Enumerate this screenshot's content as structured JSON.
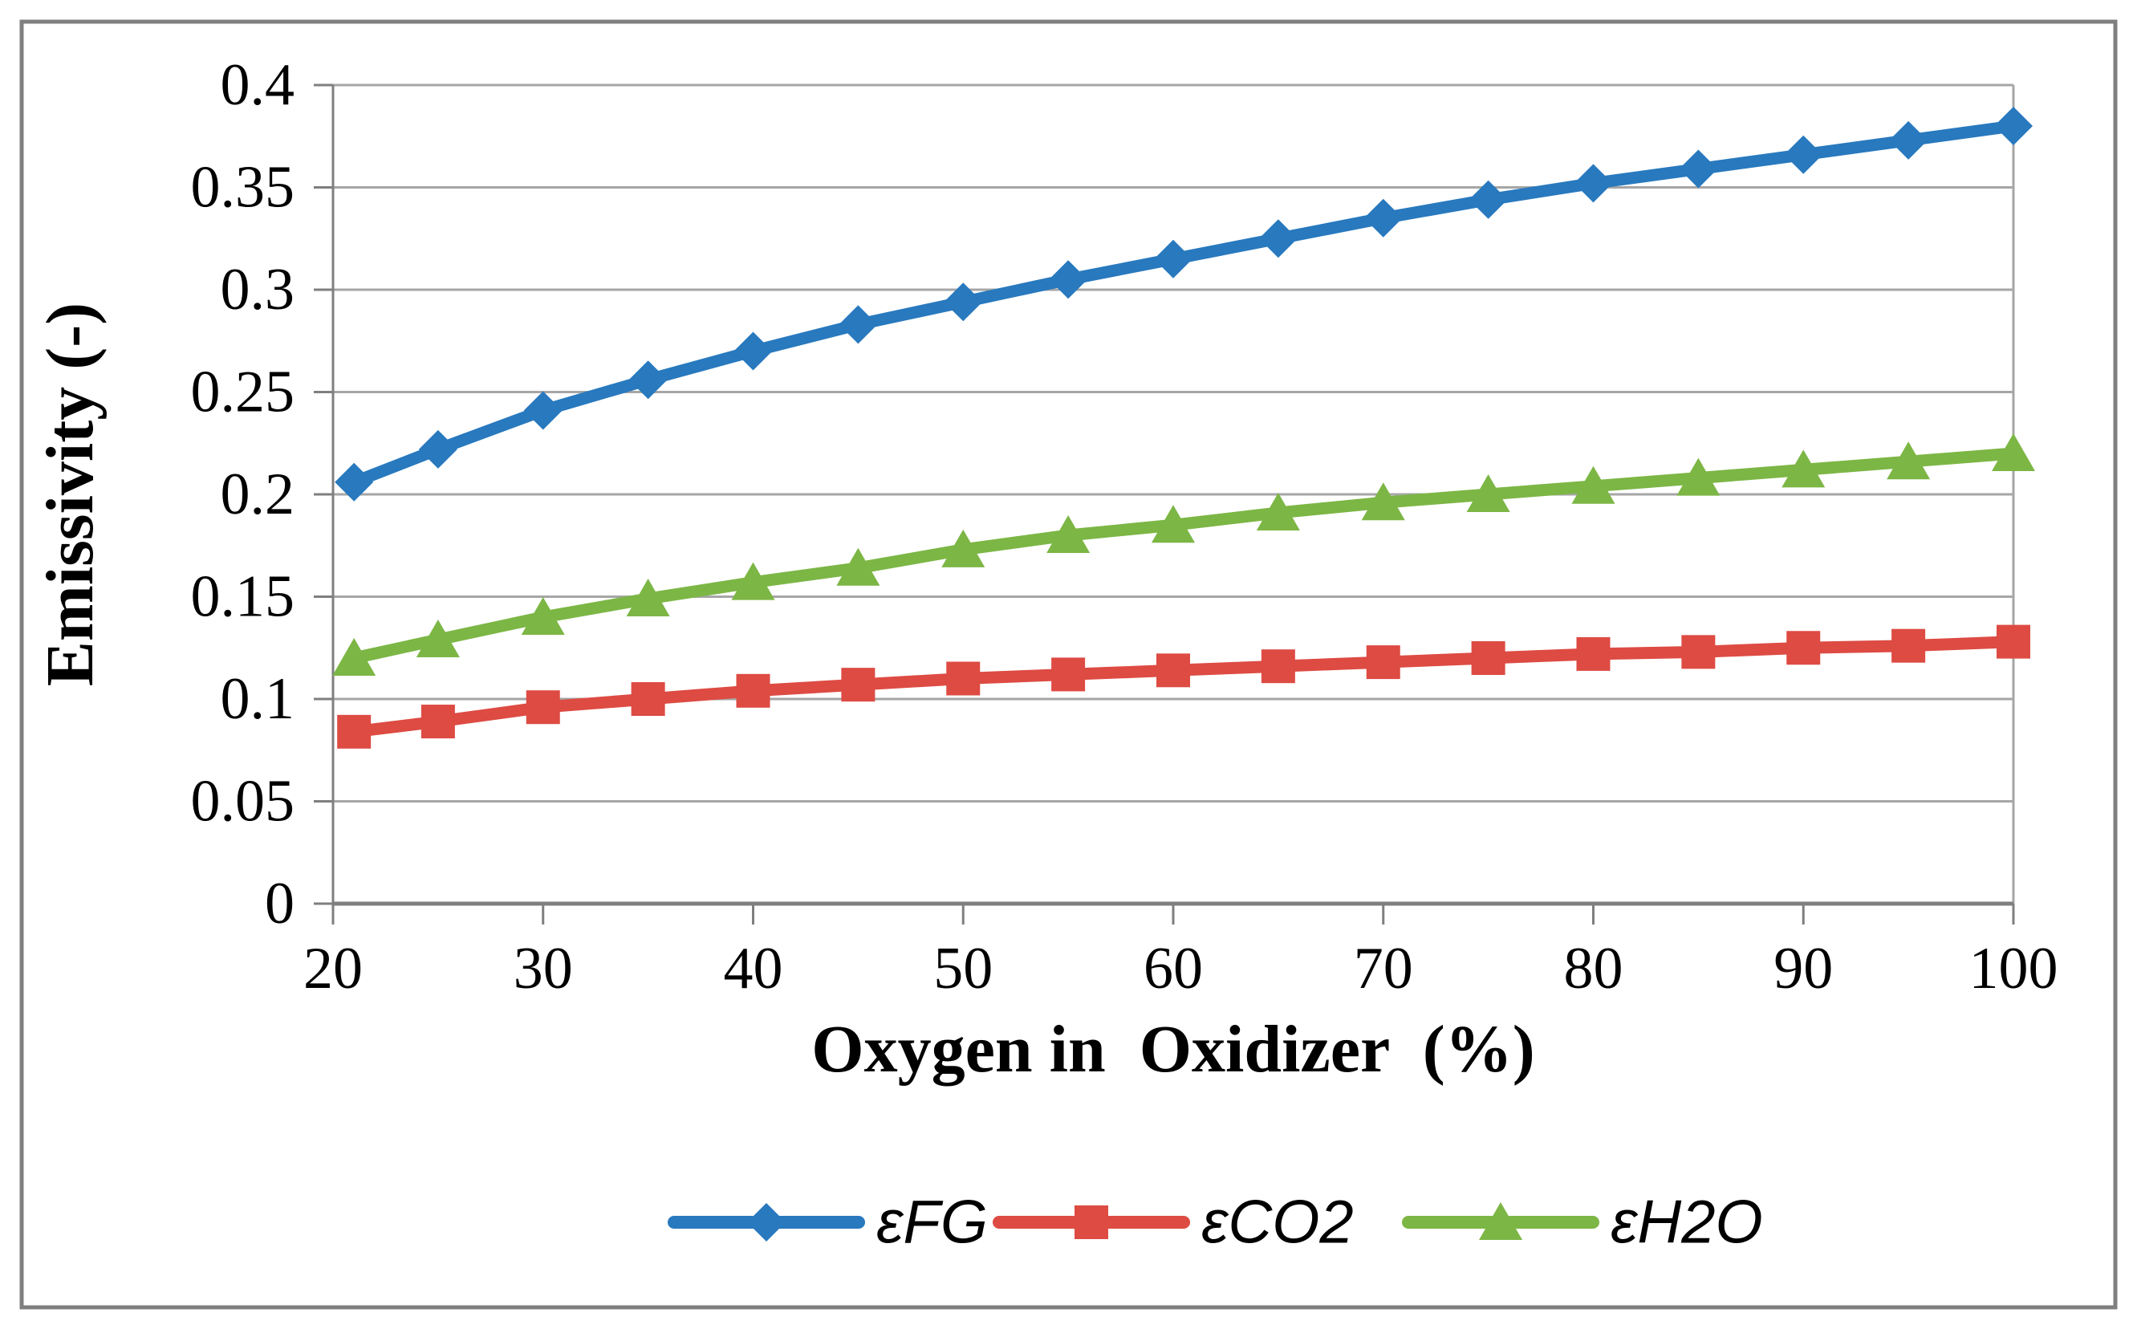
{
  "chart_data": {
    "type": "line",
    "title": "",
    "xlabel": "Oxygen in  Oxidizer  (%)",
    "ylabel": "Emissivity (-)",
    "xlim": [
      20,
      100
    ],
    "ylim": [
      0,
      0.4
    ],
    "grid": true,
    "legend_position": "bottom",
    "xticks": {
      "values": [
        20,
        30,
        40,
        50,
        60,
        70,
        80,
        90,
        100
      ],
      "labels": [
        "20",
        "30",
        "40",
        "50",
        "60",
        "70",
        "80",
        "90",
        "100"
      ]
    },
    "yticks": {
      "values": [
        0,
        0.05,
        0.1,
        0.15,
        0.2,
        0.25,
        0.3,
        0.35,
        0.4
      ],
      "labels": [
        "0",
        "0.05",
        "0.1",
        "0.15",
        "0.2",
        "0.25",
        "0.3",
        "0.35",
        "0.4"
      ]
    },
    "x": [
      21,
      25,
      30,
      35,
      40,
      45,
      50,
      55,
      60,
      65,
      70,
      75,
      80,
      85,
      90,
      95,
      100
    ],
    "series": [
      {
        "id": "efg",
        "name": "εFG",
        "color": "#2879BE",
        "marker": "diamond",
        "values": [
          0.206,
          0.222,
          0.241,
          0.256,
          0.27,
          0.283,
          0.294,
          0.305,
          0.315,
          0.325,
          0.335,
          0.344,
          0.352,
          0.359,
          0.366,
          0.373,
          0.38
        ]
      },
      {
        "id": "eco2",
        "name": "εCO2",
        "color": "#DD4B43",
        "marker": "square",
        "values": [
          0.084,
          0.089,
          0.096,
          0.1,
          0.104,
          0.107,
          0.11,
          0.112,
          0.114,
          0.116,
          0.118,
          0.12,
          0.122,
          0.123,
          0.125,
          0.126,
          0.128
        ]
      },
      {
        "id": "eh2o",
        "name": "εH2O",
        "color": "#7CB645",
        "marker": "triangle",
        "values": [
          0.12,
          0.129,
          0.14,
          0.149,
          0.157,
          0.164,
          0.173,
          0.18,
          0.185,
          0.191,
          0.196,
          0.2,
          0.204,
          0.208,
          0.212,
          0.216,
          0.22
        ]
      }
    ]
  },
  "colors": {
    "gridline": "#A6A6A6",
    "axis": "#7F7F7F",
    "border": "#7F7F7F",
    "text": "#000000",
    "background": "#FFFFFF"
  }
}
